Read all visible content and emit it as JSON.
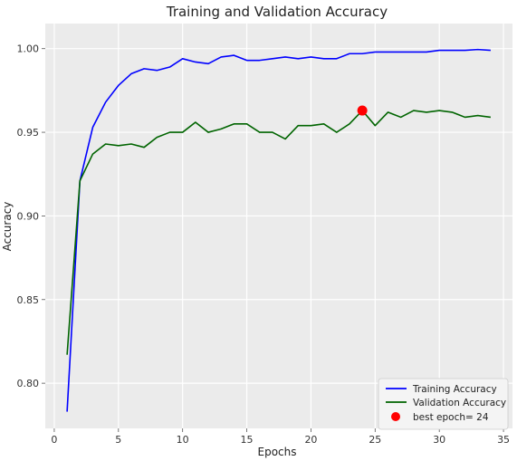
{
  "chart_data": {
    "type": "line",
    "title": "Training and Validation Accuracy",
    "xlabel": "Epochs",
    "ylabel": "Accuracy",
    "xlim": [
      -0.7,
      35.7
    ],
    "ylim": [
      0.773,
      1.015
    ],
    "xticks": [
      0,
      5,
      10,
      15,
      20,
      25,
      30,
      35
    ],
    "yticks": [
      0.8,
      0.85,
      0.9,
      0.95,
      1.0
    ],
    "ytick_labels": [
      "0.80",
      "0.85",
      "0.90",
      "0.95",
      "1.00"
    ],
    "grid": true,
    "legend_position": "lower-right",
    "x": [
      1,
      2,
      3,
      4,
      5,
      6,
      7,
      8,
      9,
      10,
      11,
      12,
      13,
      14,
      15,
      16,
      17,
      18,
      19,
      20,
      21,
      22,
      23,
      24,
      25,
      26,
      27,
      28,
      29,
      30,
      31,
      32,
      33,
      34
    ],
    "series": [
      {
        "name": "Training Accuracy",
        "color": "#0000ff",
        "values": [
          0.783,
          0.921,
          0.953,
          0.968,
          0.978,
          0.985,
          0.988,
          0.987,
          0.989,
          0.994,
          0.992,
          0.991,
          0.995,
          0.996,
          0.993,
          0.993,
          0.994,
          0.995,
          0.994,
          0.995,
          0.994,
          0.994,
          0.997,
          0.997,
          0.998,
          0.998,
          0.998,
          0.998,
          0.998,
          0.999,
          0.999,
          0.999,
          0.9995,
          0.999
        ]
      },
      {
        "name": "Validation Accuracy",
        "color": "#006400",
        "values": [
          0.817,
          0.921,
          0.937,
          0.943,
          0.942,
          0.943,
          0.941,
          0.947,
          0.95,
          0.95,
          0.956,
          0.95,
          0.952,
          0.955,
          0.955,
          0.95,
          0.95,
          0.946,
          0.954,
          0.954,
          0.955,
          0.95,
          0.955,
          0.963,
          0.954,
          0.962,
          0.959,
          0.963,
          0.962,
          0.963,
          0.962,
          0.959,
          0.96,
          0.959
        ]
      }
    ],
    "best_point": {
      "label": "best epoch= 24",
      "color": "#ff0000",
      "x": 24,
      "y": 0.963
    }
  }
}
